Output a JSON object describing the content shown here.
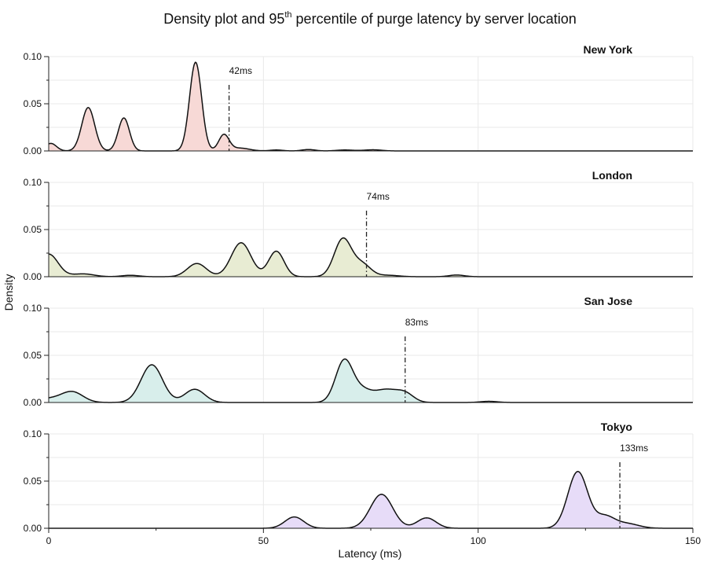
{
  "chart_data": {
    "type": "area",
    "title": {
      "main": "Density plot and 95",
      "sup": "th",
      "rest": " percentile of purge latency by server location"
    },
    "xlabel": "Latency (ms)",
    "ylabel": "Density",
    "xlim": [
      0,
      150
    ],
    "ylim": [
      0,
      0.1
    ],
    "x_ticks": [
      "0",
      "50",
      "100",
      "150"
    ],
    "x_tick_values": [
      0,
      50,
      100,
      150
    ],
    "y_ticks": [
      "0.00",
      "0.05",
      "0.10"
    ],
    "y_tick_values": [
      0,
      0.05,
      0.1
    ],
    "grid": true,
    "panels": [
      {
        "name": "New York",
        "color": "#f7d9d6",
        "p95_value": 42,
        "p95_label": "42ms",
        "components": [
          {
            "mu": 0.5,
            "sigma": 1.3,
            "amp": 0.008
          },
          {
            "mu": 9.2,
            "sigma": 1.5,
            "amp": 0.046
          },
          {
            "mu": 17.5,
            "sigma": 1.3,
            "amp": 0.035
          },
          {
            "mu": 34.2,
            "sigma": 1.4,
            "amp": 0.094
          },
          {
            "mu": 40.8,
            "sigma": 1.2,
            "amp": 0.017
          },
          {
            "mu": 44.5,
            "sigma": 2.2,
            "amp": 0.003
          },
          {
            "mu": 53.0,
            "sigma": 1.5,
            "amp": 0.001
          },
          {
            "mu": 60.5,
            "sigma": 1.5,
            "amp": 0.0015
          },
          {
            "mu": 69.0,
            "sigma": 2.0,
            "amp": 0.001
          },
          {
            "mu": 75.5,
            "sigma": 2.0,
            "amp": 0.0012
          }
        ]
      },
      {
        "name": "London",
        "color": "#e8ecd3",
        "p95_value": 74,
        "p95_label": "74ms",
        "components": [
          {
            "mu": 0.0,
            "sigma": 2.2,
            "amp": 0.024
          },
          {
            "mu": 8.0,
            "sigma": 2.5,
            "amp": 0.003
          },
          {
            "mu": 19.0,
            "sigma": 2.0,
            "amp": 0.0015
          },
          {
            "mu": 34.5,
            "sigma": 2.2,
            "amp": 0.014
          },
          {
            "mu": 44.8,
            "sigma": 2.3,
            "amp": 0.036
          },
          {
            "mu": 53.0,
            "sigma": 1.8,
            "amp": 0.027
          },
          {
            "mu": 68.5,
            "sigma": 2.0,
            "amp": 0.04
          },
          {
            "mu": 73.0,
            "sigma": 2.0,
            "amp": 0.013
          },
          {
            "mu": 79.0,
            "sigma": 2.5,
            "amp": 0.0015
          },
          {
            "mu": 95.0,
            "sigma": 1.8,
            "amp": 0.0018
          }
        ]
      },
      {
        "name": "San Jose",
        "color": "#d8eeeb",
        "p95_value": 83,
        "p95_label": "83ms",
        "components": [
          {
            "mu": 0.0,
            "sigma": 3.0,
            "amp": 0.004
          },
          {
            "mu": 5.5,
            "sigma": 2.5,
            "amp": 0.011
          },
          {
            "mu": 24.0,
            "sigma": 2.5,
            "amp": 0.04
          },
          {
            "mu": 34.0,
            "sigma": 2.3,
            "amp": 0.014
          },
          {
            "mu": 68.8,
            "sigma": 2.0,
            "amp": 0.044
          },
          {
            "mu": 73.0,
            "sigma": 2.2,
            "amp": 0.012
          },
          {
            "mu": 78.5,
            "sigma": 2.6,
            "amp": 0.013
          },
          {
            "mu": 83.0,
            "sigma": 2.0,
            "amp": 0.009
          },
          {
            "mu": 102.5,
            "sigma": 2.0,
            "amp": 0.0012
          }
        ]
      },
      {
        "name": "Tokyo",
        "color": "#e7dcf8",
        "p95_value": 133,
        "p95_label": "133ms",
        "components": [
          {
            "mu": 57.2,
            "sigma": 2.2,
            "amp": 0.012
          },
          {
            "mu": 77.5,
            "sigma": 2.6,
            "amp": 0.036
          },
          {
            "mu": 88.0,
            "sigma": 2.2,
            "amp": 0.011
          },
          {
            "mu": 123.2,
            "sigma": 2.3,
            "amp": 0.06
          },
          {
            "mu": 129.5,
            "sigma": 2.2,
            "amp": 0.012
          },
          {
            "mu": 134.5,
            "sigma": 2.8,
            "amp": 0.005
          }
        ]
      }
    ]
  }
}
